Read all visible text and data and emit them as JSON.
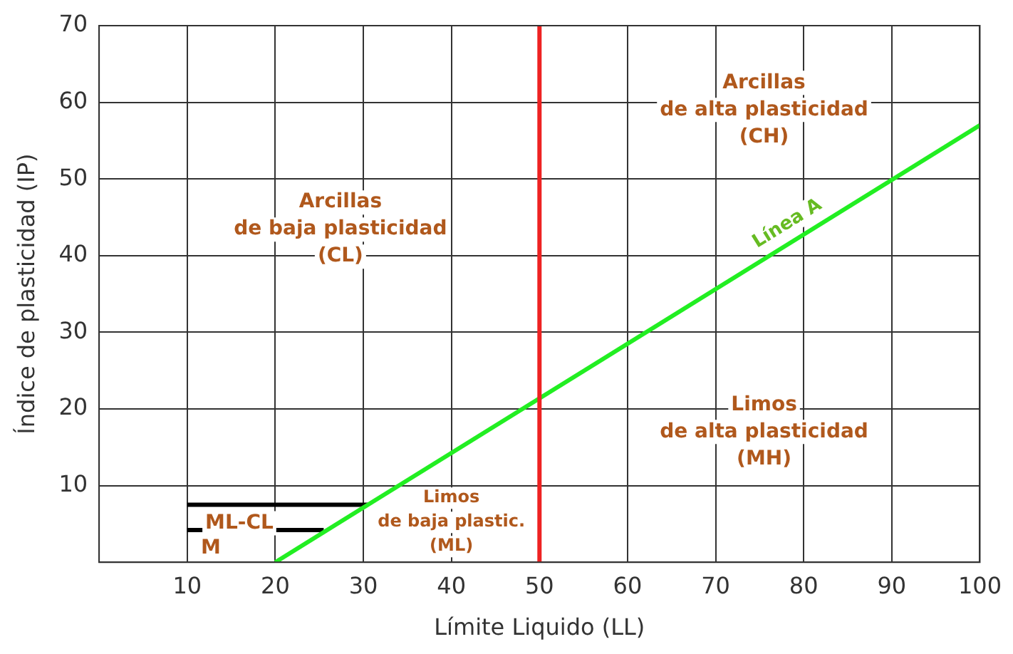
{
  "chart_data": {
    "type": "line",
    "xlabel": "Límite Liquido (LL)",
    "ylabel": "Índice de plasticidad (IP)",
    "xlim": [
      0,
      100
    ],
    "ylim": [
      0,
      70
    ],
    "xticks": [
      10,
      20,
      30,
      40,
      50,
      60,
      70,
      80,
      90,
      100
    ],
    "yticks": [
      10,
      20,
      30,
      40,
      50,
      60,
      70
    ],
    "grid": true,
    "marker": "none",
    "line_style": "solid",
    "series": [
      {
        "name": "Línea A",
        "color": "#22ee22",
        "x": [
          20,
          100
        ],
        "values": [
          0,
          57
        ]
      },
      {
        "name": "ML-CL",
        "color": "#000000",
        "x": [
          10,
          30.5
        ],
        "values": [
          7.5,
          7.5
        ]
      },
      {
        "name": "M",
        "color": "#000000",
        "x": [
          10,
          25.5
        ],
        "values": [
          4.2,
          4.2
        ]
      }
    ],
    "ref_lines": [
      {
        "axis": "x",
        "value": 50,
        "color": "#ee2222"
      }
    ],
    "annotations": [
      "Arcillas\nde baja plasticidad\n(CL)",
      "Arcillas\nde alta plasticidad\n(CH)",
      "Limos\nde alta plasticidad\n(MH)",
      "Limos\nde baja plastic.\n(ML)"
    ]
  }
}
